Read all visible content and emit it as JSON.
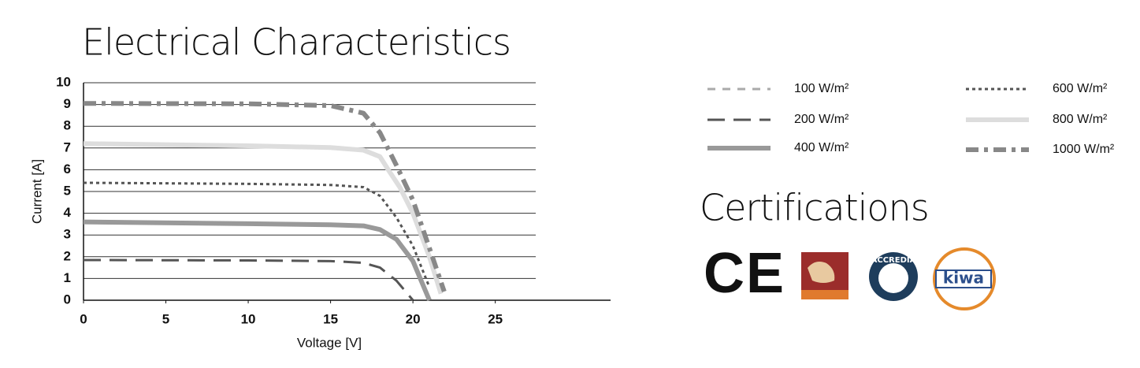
{
  "chart_data": {
    "type": "line",
    "title": "Electrical Characteristics",
    "xlabel": "Voltage [V]",
    "ylabel": "Current [A]",
    "xlim": [
      0,
      32
    ],
    "xticks": [
      0,
      5,
      10,
      15,
      20,
      25
    ],
    "ylim": [
      0,
      10
    ],
    "yticks": [
      0,
      1,
      2,
      3,
      4,
      5,
      6,
      7,
      8,
      9,
      10
    ],
    "grid": true,
    "series": [
      {
        "name": "100 W/m²",
        "color": "#aaaaaa",
        "x": [
          0
        ],
        "values": [
          null
        ]
      },
      {
        "name": "200 W/m²",
        "color": "#555555",
        "x": [
          0,
          10,
          15,
          17,
          18,
          19,
          20
        ],
        "values": [
          1.85,
          1.83,
          1.8,
          1.72,
          1.5,
          0.9,
          0
        ]
      },
      {
        "name": "400 W/m²",
        "color": "#999999",
        "x": [
          0,
          10,
          15,
          17,
          18,
          19,
          20,
          21
        ],
        "values": [
          3.6,
          3.52,
          3.47,
          3.42,
          3.25,
          2.8,
          1.8,
          0
        ]
      },
      {
        "name": "600 W/m²",
        "color": "#555555",
        "x": [
          0,
          10,
          15,
          17,
          18,
          19,
          20,
          21
        ],
        "values": [
          5.4,
          5.35,
          5.3,
          5.2,
          4.8,
          3.8,
          2.5,
          0.6
        ]
      },
      {
        "name": "800 W/m²",
        "color": "#dddddd",
        "x": [
          0,
          10,
          15,
          17,
          18,
          18.5,
          19.2,
          20,
          21,
          21.7
        ],
        "values": [
          7.2,
          7.1,
          7.02,
          6.9,
          6.6,
          6.0,
          5.2,
          4.0,
          2.0,
          0.3
        ]
      },
      {
        "name": "1000 W/m²",
        "color": "#888888",
        "x": [
          0,
          10,
          15,
          17,
          18,
          19,
          20,
          21,
          21.9
        ],
        "values": [
          9.05,
          9.03,
          8.95,
          8.6,
          7.7,
          6.2,
          4.6,
          2.4,
          0.4
        ]
      }
    ]
  },
  "certifications": {
    "title": "Certifications",
    "logos": [
      "CE",
      "ACCREDIA",
      "kiwa"
    ]
  }
}
